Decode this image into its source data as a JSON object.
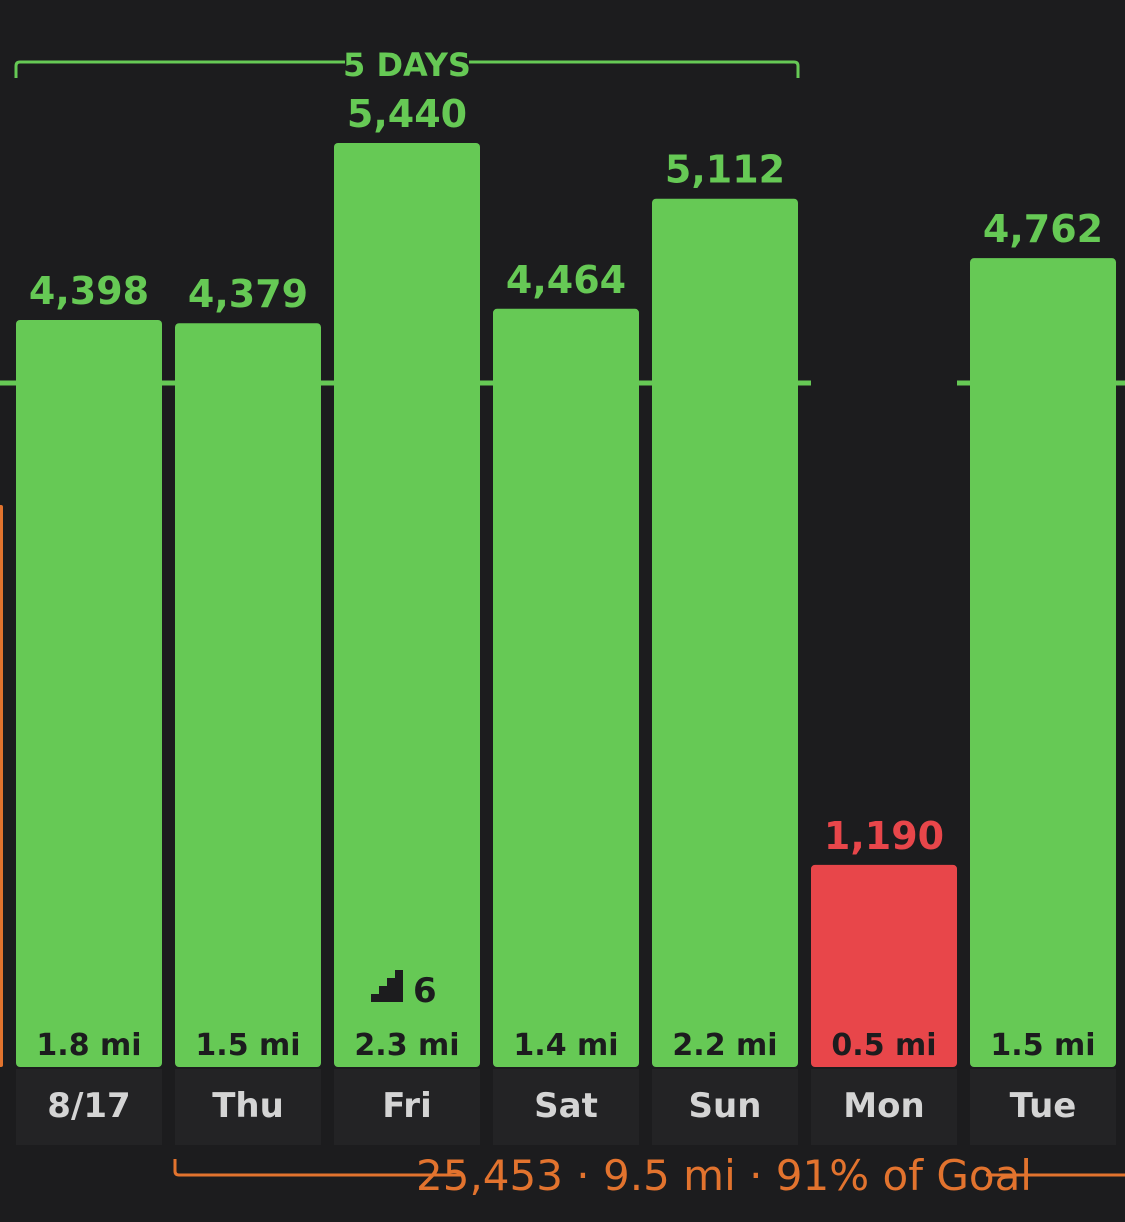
{
  "chart_data": {
    "type": "bar",
    "categories": [
      "8/17",
      "Thu",
      "Fri",
      "Sat",
      "Sun",
      "Mon",
      "Tue"
    ],
    "values": [
      4398,
      4379,
      5440,
      4464,
      5112,
      1190,
      4762
    ],
    "value_labels": [
      "4,398",
      "4,379",
      "5,440",
      "4,464",
      "5,112",
      "1,190",
      "4,762"
    ],
    "distances": [
      "1.8 mi",
      "1.5 mi",
      "2.3 mi",
      "1.4 mi",
      "2.2 mi",
      "0.5 mi",
      "1.5 mi"
    ],
    "status": [
      "met",
      "met",
      "met",
      "met",
      "met",
      "missed",
      "met"
    ],
    "flights": [
      null,
      null,
      6,
      null,
      null,
      null,
      null
    ],
    "goal": 4000,
    "ylim": [
      0,
      5800
    ],
    "streak": {
      "label": "5 DAYS",
      "start_index": 0,
      "end_index": 4
    },
    "summary": {
      "label": "25,453 · 9.5 mi · 91% of Goal",
      "start_index": 1
    },
    "colors": {
      "met": "#66c955",
      "missed": "#e8464a",
      "summary": "#e2732e",
      "day_text": "#d4d4d4",
      "day_band": "#232325",
      "background": "#1c1c1e"
    }
  }
}
